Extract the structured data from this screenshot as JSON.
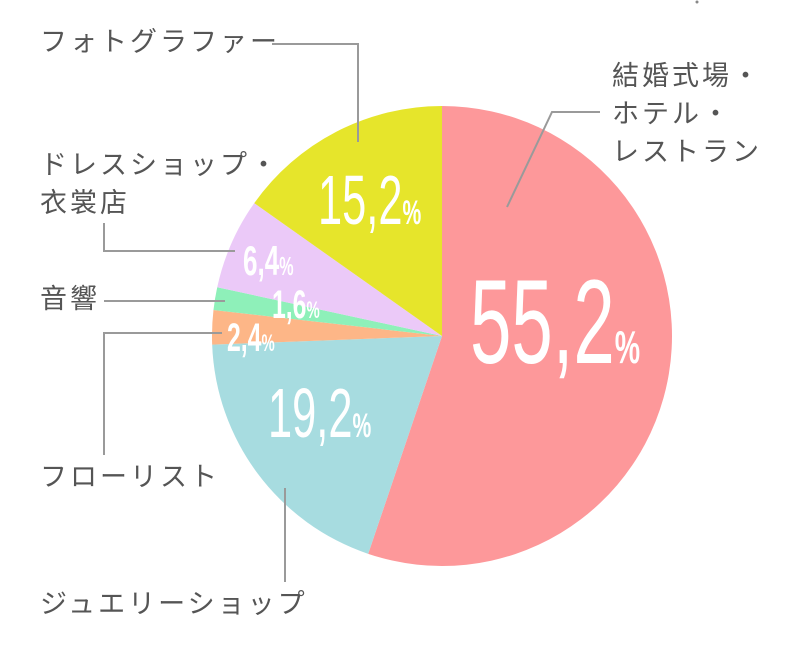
{
  "chart_data": {
    "type": "pie",
    "title": "",
    "start_angle_deg": 0,
    "direction": "clockwise",
    "center": [
      442,
      336
    ],
    "radius": 230,
    "slices": [
      {
        "label": "結婚式場・ホテル・レストラン",
        "value": 55.2,
        "display": "55,2%",
        "color": "#fd989a"
      },
      {
        "label": "ジュエリーショップ",
        "value": 19.2,
        "display": "19,2%",
        "color": "#a7dce0"
      },
      {
        "label": "フローリスト",
        "value": 2.4,
        "display": "2,4%",
        "color": "#fdb687"
      },
      {
        "label": "音響",
        "value": 1.6,
        "display": "1,6%",
        "color": "#8ef0b9"
      },
      {
        "label": "ドレスショップ・衣裳店",
        "value": 6.4,
        "display": "6,4%",
        "color": "#ebc9f8"
      },
      {
        "label": "フォトグラファー",
        "value": 15.2,
        "display": "15,2%",
        "color": "#e6e52b"
      }
    ]
  },
  "labels": {
    "wedding_line1": "結婚式場・",
    "wedding_line2": "ホテル・",
    "wedding_line3": "レストラン",
    "jewelry": "ジュエリーショップ",
    "florist": "フローリスト",
    "audio": "音響",
    "dress_line1": "ドレスショップ・",
    "dress_line2": "衣裳店",
    "photographer": "フォトグラファー"
  },
  "percentages": {
    "wedding": "55,2",
    "jewelry": "19,2",
    "florist": "2,4",
    "audio": "1,6",
    "dress": "6,4",
    "photographer": "15,2",
    "percent_sign": "%"
  },
  "colors": {
    "label_text": "#555555",
    "leader_line": "#9a9a9a",
    "value_text": "#ffffff"
  }
}
